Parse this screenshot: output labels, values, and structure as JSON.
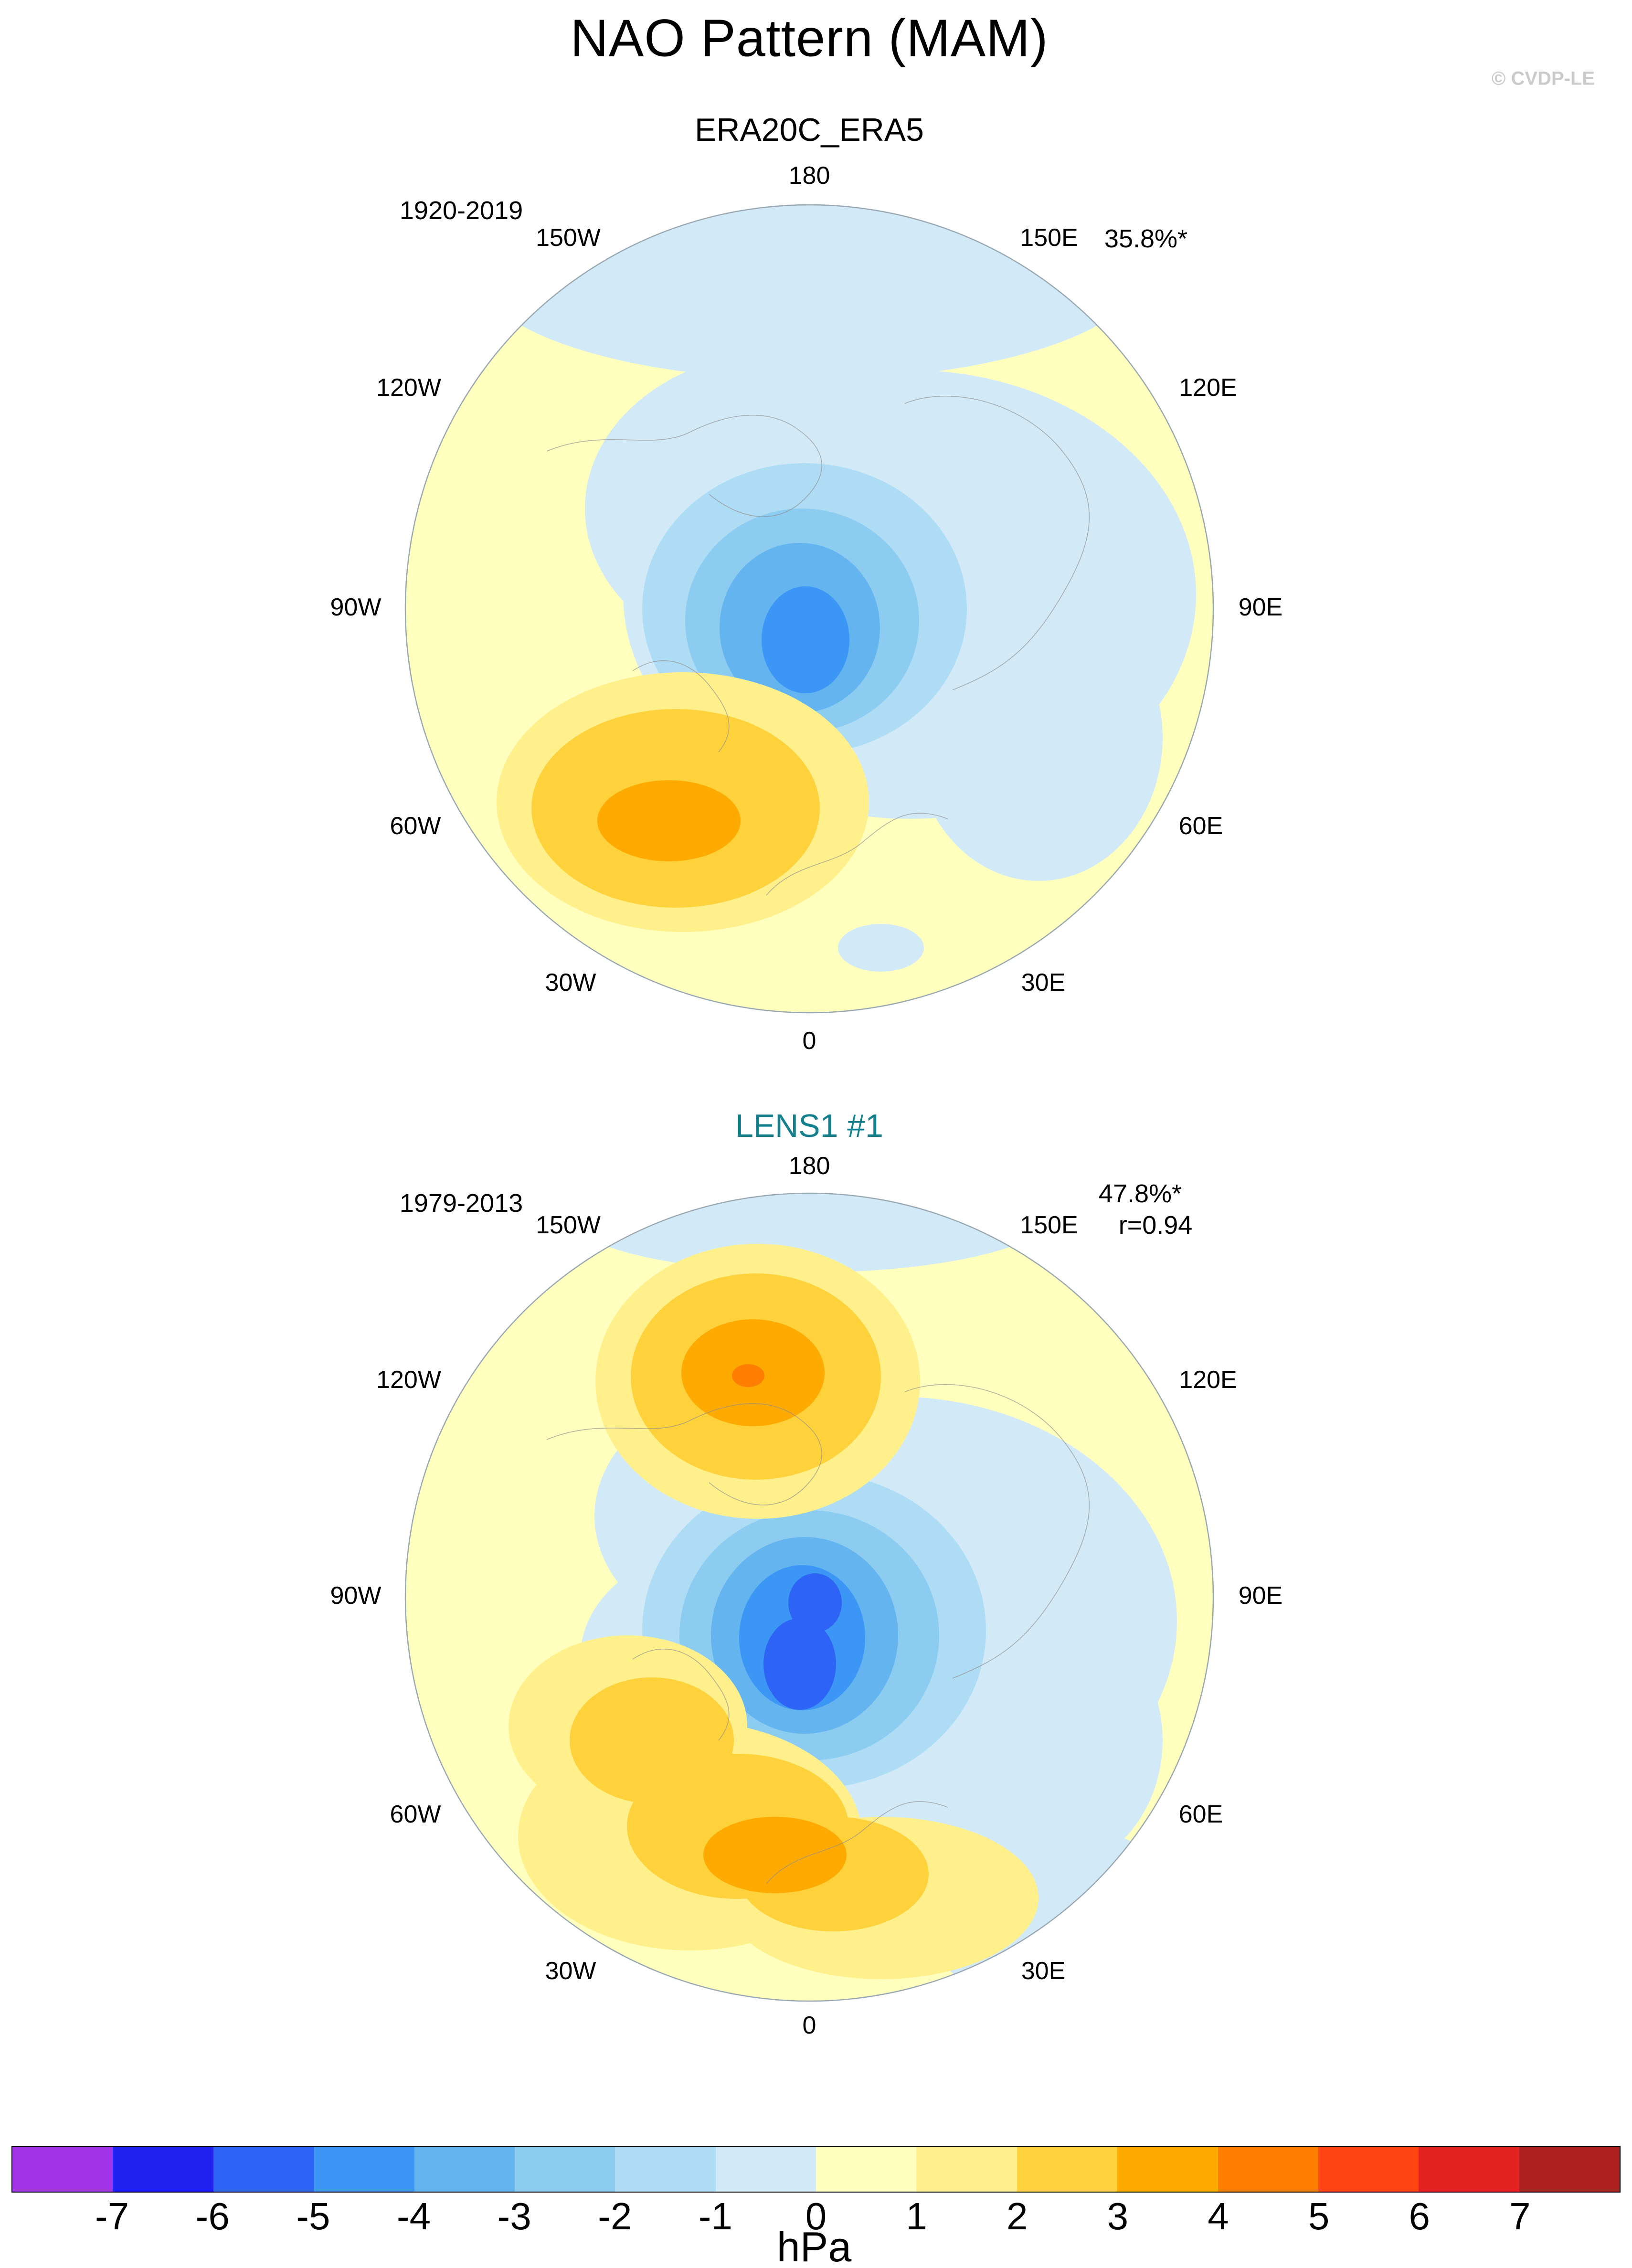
{
  "title": "NAO Pattern (MAM)",
  "watermark": "© CVDP-LE",
  "panels": [
    {
      "subtitle": "ERA20C_ERA5",
      "subtitle_color": "#000000",
      "period": "1920-2019",
      "variance": "35.8%*",
      "r_value": "",
      "lon_labels": [
        "180",
        "150W",
        "150E",
        "120W",
        "120E",
        "90W",
        "90E",
        "60W",
        "60E",
        "30W",
        "30E",
        "0"
      ]
    },
    {
      "subtitle": "LENS1 #1",
      "subtitle_color": "#15808d",
      "period": "1979-2013",
      "variance": "47.8%*",
      "r_value": "r=0.94",
      "lon_labels": [
        "180",
        "150W",
        "150E",
        "120W",
        "120E",
        "90W",
        "90E",
        "60W",
        "60E",
        "30W",
        "30E",
        "0"
      ]
    }
  ],
  "colorbar": {
    "unit": "hPa",
    "tick_labels": [
      "-7",
      "-6",
      "-5",
      "-4",
      "-3",
      "-2",
      "-1",
      "0",
      "1",
      "2",
      "3",
      "4",
      "5",
      "6",
      "7"
    ],
    "colors": [
      "#a233e8",
      "#2222f0",
      "#2e64f5",
      "#3c96f5",
      "#64b4f0",
      "#8cccf0",
      "#aedcf5",
      "#d2eaf8",
      "#ffffbe",
      "#fff08c",
      "#ffd23c",
      "#ffaa00",
      "#ff7d00",
      "#ff4614",
      "#e32222",
      "#af1e1e"
    ]
  },
  "chart_data": [
    {
      "type": "heatmap",
      "subtype": "polar stereographic contour map, Northern Hemisphere, 0 longitude at bottom, 180 at top",
      "title": "ERA20C_ERA5",
      "period": "1920-2019",
      "variance_explained": "35.8%*",
      "units": "hPa",
      "contour_interval": 1,
      "levels": [
        -7,
        -6,
        -5,
        -4,
        -3,
        -2,
        -1,
        0,
        1,
        2,
        3,
        4,
        5,
        6,
        7
      ],
      "longitude_ring_labels": [
        "180",
        "150W",
        "150E",
        "120W",
        "120E",
        "90W",
        "90E",
        "60W",
        "60E",
        "30W",
        "30E",
        "0"
      ],
      "centers": [
        {
          "sign": "negative",
          "location": "Arctic / Greenland-Iceland region",
          "approx_extreme_hPa": -5
        },
        {
          "sign": "positive",
          "location": "central North Atlantic (~45N, 30W-60W)",
          "approx_extreme_hPa": 4
        }
      ],
      "background_field": "weak positive (0 to 1 hPa) over mid-latitudes, weak negative (-1 to 0) over Arctic and Eurasia"
    },
    {
      "type": "heatmap",
      "subtype": "polar stereographic contour map, Northern Hemisphere, 0 longitude at bottom, 180 at top",
      "title": "LENS1 #1",
      "period": "1979-2013",
      "variance_explained": "47.8%*",
      "pattern_correlation": "r=0.94",
      "units": "hPa",
      "contour_interval": 1,
      "levels": [
        -7,
        -6,
        -5,
        -4,
        -3,
        -2,
        -1,
        0,
        1,
        2,
        3,
        4,
        5,
        6,
        7
      ],
      "longitude_ring_labels": [
        "180",
        "150W",
        "150E",
        "120W",
        "120E",
        "90W",
        "90E",
        "60W",
        "60E",
        "30W",
        "30E",
        "0"
      ],
      "centers": [
        {
          "sign": "negative",
          "location": "Iceland / Nordic seas and Arctic",
          "approx_extreme_hPa": -6
        },
        {
          "sign": "positive",
          "location": "North Pacific (~45N, near 150W-180)",
          "approx_extreme_hPa": 4
        },
        {
          "sign": "positive",
          "location": "North Atlantic extending into southern Europe",
          "approx_extreme_hPa": 4
        }
      ],
      "background_field": "weak positive (0 to 1 hPa) over mid-latitudes, weak negative (-1 to 0) over Arctic and eastern Asia"
    }
  ]
}
